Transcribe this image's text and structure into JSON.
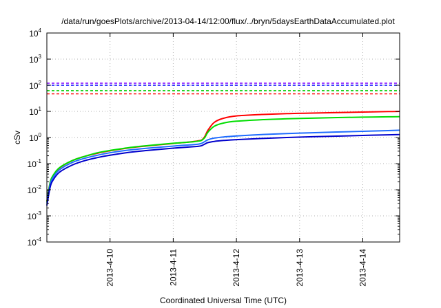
{
  "chart_data": {
    "type": "line",
    "title": "/data/run/goesPlots/archive/2013-04-14/12:00/flux/../bryn/5daysEarthDataAccumulated.plot",
    "xlabel": "Coordinated Universal Time (UTC)",
    "ylabel": "cSv",
    "yscale": "log",
    "ylim": [
      0.0001,
      10000
    ],
    "xlim": [
      "2013-04-09 00:00",
      "2013-04-14 14:00"
    ],
    "grid": true,
    "legend": "none",
    "y_ticks": [
      {
        "value": 0.0001,
        "base": "10",
        "exp": "-4"
      },
      {
        "value": 0.001,
        "base": "10",
        "exp": "-3"
      },
      {
        "value": 0.01,
        "base": "10",
        "exp": "-2"
      },
      {
        "value": 0.1,
        "base": "10",
        "exp": "-1"
      },
      {
        "value": 1,
        "base": "10",
        "exp": "0"
      },
      {
        "value": 10,
        "base": "10",
        "exp": "1"
      },
      {
        "value": 100,
        "base": "10",
        "exp": "2"
      },
      {
        "value": 1000,
        "base": "10",
        "exp": "3"
      },
      {
        "value": 10000,
        "base": "10",
        "exp": "4"
      }
    ],
    "x_ticks": [
      {
        "value": "2013-04-10 00:00",
        "label": "2013-4-10"
      },
      {
        "value": "2013-04-11 00:00",
        "label": "2013-4-11"
      },
      {
        "value": "2013-04-12 00:00",
        "label": "2013-4-12"
      },
      {
        "value": "2013-04-13 00:00",
        "label": "2013-4-13"
      },
      {
        "value": "2013-04-14 00:00",
        "label": "2013-4-14"
      }
    ],
    "thresholds": [
      {
        "y": 120,
        "color": "#8000ff",
        "style": "dashed"
      },
      {
        "y": 100,
        "color": "#0000ff",
        "style": "dashed"
      },
      {
        "y": 62,
        "color": "#00cc00",
        "style": "dashed"
      },
      {
        "y": 47,
        "color": "#ff0000",
        "style": "dashed"
      }
    ],
    "series": [
      {
        "color": "#ff0000",
        "points": [
          [
            "2013-04-09 00:00",
            0.0035
          ],
          [
            "2013-04-09 01:12",
            0.018
          ],
          [
            "2013-04-09 02:24",
            0.035
          ],
          [
            "2013-04-09 04:48",
            0.068
          ],
          [
            "2013-04-09 09:36",
            0.13
          ],
          [
            "2013-04-09 14:24",
            0.19
          ],
          [
            "2013-04-09 19:12",
            0.25
          ],
          [
            "2013-04-10 00:00",
            0.31
          ],
          [
            "2013-04-10 07:12",
            0.4
          ],
          [
            "2013-04-10 14:24",
            0.48
          ],
          [
            "2013-04-11 00:00",
            0.59
          ],
          [
            "2013-04-11 07:12",
            0.69
          ],
          [
            "2013-04-11 09:36",
            0.75
          ],
          [
            "2013-04-11 10:48",
            0.8
          ],
          [
            "2013-04-11 12:00",
            1.1
          ],
          [
            "2013-04-11 13:12",
            1.9
          ],
          [
            "2013-04-11 15:36",
            3.8
          ],
          [
            "2013-04-11 19:12",
            5.5
          ],
          [
            "2013-04-12 00:00",
            6.7
          ],
          [
            "2013-04-12 09:36",
            7.6
          ],
          [
            "2013-04-12 19:12",
            8.2
          ],
          [
            "2013-04-13 04:48",
            8.6
          ],
          [
            "2013-04-13 14:24",
            9.0
          ],
          [
            "2013-04-14 00:00",
            9.4
          ],
          [
            "2013-04-14 09:36",
            9.8
          ],
          [
            "2013-04-14 14:00",
            10.0
          ]
        ]
      },
      {
        "color": "#00dd00",
        "points": [
          [
            "2013-04-09 00:00",
            0.0035
          ],
          [
            "2013-04-09 01:12",
            0.018
          ],
          [
            "2013-04-09 02:24",
            0.036
          ],
          [
            "2013-04-09 04:48",
            0.07
          ],
          [
            "2013-04-09 09:36",
            0.13
          ],
          [
            "2013-04-09 14:24",
            0.19
          ],
          [
            "2013-04-09 19:12",
            0.26
          ],
          [
            "2013-04-10 00:00",
            0.32
          ],
          [
            "2013-04-10 07:12",
            0.41
          ],
          [
            "2013-04-10 14:24",
            0.49
          ],
          [
            "2013-04-11 00:00",
            0.6
          ],
          [
            "2013-04-11 07:12",
            0.68
          ],
          [
            "2013-04-11 09:36",
            0.73
          ],
          [
            "2013-04-11 10:48",
            0.78
          ],
          [
            "2013-04-11 12:00",
            1.0
          ],
          [
            "2013-04-11 13:12",
            1.6
          ],
          [
            "2013-04-11 15:36",
            2.7
          ],
          [
            "2013-04-11 19:12",
            3.6
          ],
          [
            "2013-04-12 00:00",
            4.2
          ],
          [
            "2013-04-12 09:36",
            4.8
          ],
          [
            "2013-04-12 19:12",
            5.2
          ],
          [
            "2013-04-13 04:48",
            5.5
          ],
          [
            "2013-04-13 14:24",
            5.8
          ],
          [
            "2013-04-14 00:00",
            6.0
          ],
          [
            "2013-04-14 09:36",
            6.2
          ],
          [
            "2013-04-14 14:00",
            6.3
          ]
        ]
      },
      {
        "color": "#1e6cff",
        "points": [
          [
            "2013-04-09 00:00",
            0.003
          ],
          [
            "2013-04-09 01:12",
            0.015
          ],
          [
            "2013-04-09 02:24",
            0.03
          ],
          [
            "2013-04-09 04:48",
            0.058
          ],
          [
            "2013-04-09 09:36",
            0.11
          ],
          [
            "2013-04-09 14:24",
            0.16
          ],
          [
            "2013-04-09 19:12",
            0.21
          ],
          [
            "2013-04-10 00:00",
            0.26
          ],
          [
            "2013-04-10 07:12",
            0.33
          ],
          [
            "2013-04-10 14:24",
            0.39
          ],
          [
            "2013-04-11 00:00",
            0.47
          ],
          [
            "2013-04-11 07:12",
            0.53
          ],
          [
            "2013-04-11 09:36",
            0.56
          ],
          [
            "2013-04-11 10:48",
            0.6
          ],
          [
            "2013-04-11 12:00",
            0.7
          ],
          [
            "2013-04-11 13:12",
            0.82
          ],
          [
            "2013-04-11 15:36",
            0.95
          ],
          [
            "2013-04-11 19:12",
            1.05
          ],
          [
            "2013-04-12 00:00",
            1.15
          ],
          [
            "2013-04-12 09:36",
            1.3
          ],
          [
            "2013-04-12 19:12",
            1.42
          ],
          [
            "2013-04-13 04:48",
            1.52
          ],
          [
            "2013-04-13 14:24",
            1.62
          ],
          [
            "2013-04-14 00:00",
            1.72
          ],
          [
            "2013-04-14 09:36",
            1.83
          ],
          [
            "2013-04-14 14:00",
            1.9
          ]
        ]
      },
      {
        "color": "#0000cc",
        "points": [
          [
            "2013-04-09 00:00",
            0.0025
          ],
          [
            "2013-04-09 01:12",
            0.012
          ],
          [
            "2013-04-09 02:24",
            0.024
          ],
          [
            "2013-04-09 04:48",
            0.047
          ],
          [
            "2013-04-09 09:36",
            0.088
          ],
          [
            "2013-04-09 14:24",
            0.13
          ],
          [
            "2013-04-09 19:12",
            0.17
          ],
          [
            "2013-04-10 00:00",
            0.21
          ],
          [
            "2013-04-10 07:12",
            0.27
          ],
          [
            "2013-04-10 14:24",
            0.32
          ],
          [
            "2013-04-11 00:00",
            0.39
          ],
          [
            "2013-04-11 07:12",
            0.44
          ],
          [
            "2013-04-11 09:36",
            0.46
          ],
          [
            "2013-04-11 10:48",
            0.49
          ],
          [
            "2013-04-11 12:00",
            0.56
          ],
          [
            "2013-04-11 13:12",
            0.64
          ],
          [
            "2013-04-11 15:36",
            0.71
          ],
          [
            "2013-04-11 19:12",
            0.77
          ],
          [
            "2013-04-12 00:00",
            0.83
          ],
          [
            "2013-04-12 09:36",
            0.92
          ],
          [
            "2013-04-12 19:12",
            1.0
          ],
          [
            "2013-04-13 04:48",
            1.07
          ],
          [
            "2013-04-13 14:24",
            1.13
          ],
          [
            "2013-04-14 00:00",
            1.2
          ],
          [
            "2013-04-14 09:36",
            1.27
          ],
          [
            "2013-04-14 14:00",
            1.3
          ]
        ]
      }
    ]
  }
}
